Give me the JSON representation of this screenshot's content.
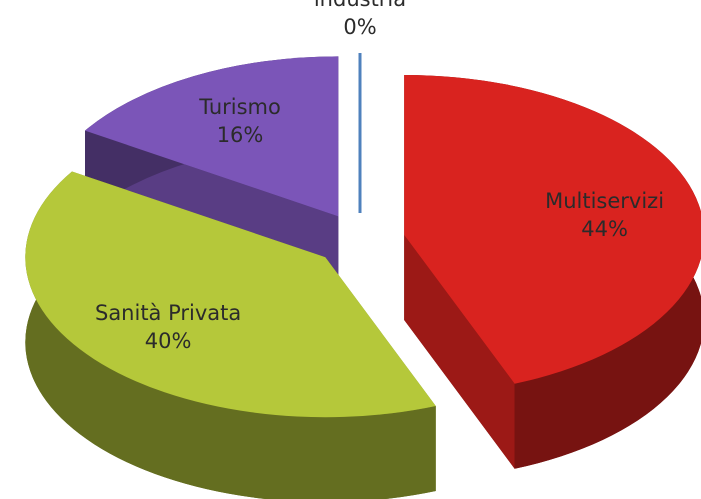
{
  "chart_data": {
    "type": "pie",
    "categories": [
      "Multiservizi",
      "Sanità Privata",
      "Turismo",
      "Dirigenti industria"
    ],
    "values": [
      44,
      40,
      16,
      0
    ],
    "value_labels": [
      "44%",
      "40%",
      "16%",
      "0%"
    ],
    "colors": [
      "#d9231f",
      "#b5c83a",
      "#7b55b8",
      "#4f81bd"
    ]
  }
}
